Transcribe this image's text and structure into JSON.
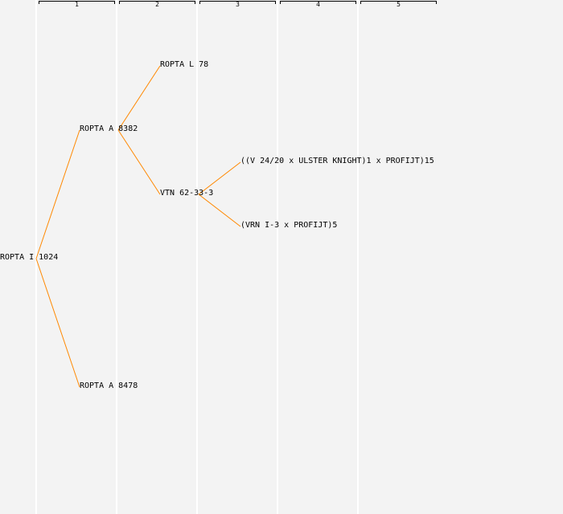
{
  "columns": [
    "1",
    "2",
    "3",
    "4",
    "5"
  ],
  "line_color": "#ff8800",
  "tree": {
    "label": "ROPTA I 1024",
    "children": [
      {
        "label": "ROPTA A 8382",
        "children": [
          {
            "label": "ROPTA L 78",
            "children": []
          },
          {
            "label": "VTN 62-33-3",
            "children": [
              {
                "label": "((V 24/20 x ULSTER KNIGHT)1 x PROFIJT)15",
                "children": []
              },
              {
                "label": "(VRN I-3 x PROFIJT)5",
                "children": []
              }
            ]
          }
        ]
      },
      {
        "label": "ROPTA A 8478",
        "children": []
      }
    ]
  }
}
